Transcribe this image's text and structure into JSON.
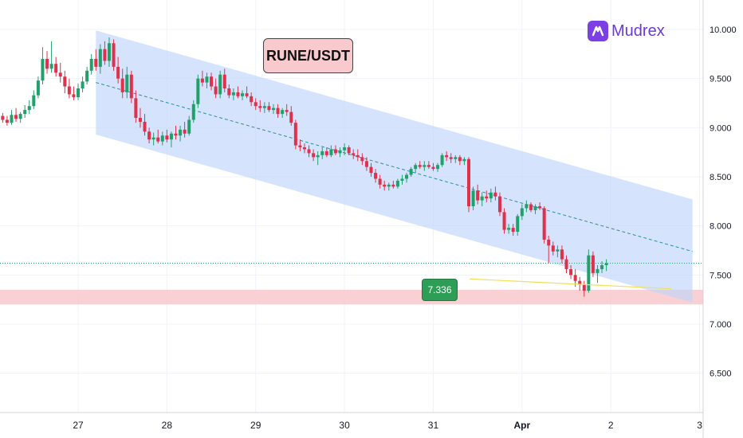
{
  "chart_data": {
    "type": "candlestick",
    "title": "RUNE/USDT",
    "watermark": "Mudrex",
    "y_ticks": [
      "10.000",
      "9.500",
      "9.000",
      "8.500",
      "8.000",
      "7.500",
      "7.000",
      "6.500"
    ],
    "ylim": [
      6.1,
      10.3
    ],
    "x_labels": [
      {
        "label": "27",
        "x": 1,
        "bold": false
      },
      {
        "label": "28",
        "x": 2,
        "bold": false
      },
      {
        "label": "29",
        "x": 3,
        "bold": false
      },
      {
        "label": "30",
        "x": 4,
        "bold": false
      },
      {
        "label": "31",
        "x": 5,
        "bold": false
      },
      {
        "label": "Apr",
        "x": 6,
        "bold": true
      },
      {
        "label": "2",
        "x": 7,
        "bold": false
      },
      {
        "label": "3",
        "x": 8,
        "bold": false
      }
    ],
    "xlim": [
      0.12,
      8.04
    ],
    "channel": {
      "upper": [
        [
          1.2,
          9.99
        ],
        [
          7.92,
          8.27
        ]
      ],
      "lower": [
        [
          1.2,
          8.93
        ],
        [
          7.92,
          7.22
        ]
      ],
      "mid": [
        [
          1.2,
          9.46
        ],
        [
          7.92,
          7.74
        ]
      ],
      "fill_color": "#bcd4fa",
      "mid_color": "#2d8ea3"
    },
    "support_zone": {
      "low": 7.2,
      "high": 7.35,
      "color": "#f8c9cd"
    },
    "current_price_line": 7.62,
    "price_label": {
      "text": "7.336",
      "value": 7.336
    },
    "pointer_line": {
      "from": [
        5.41,
        7.46
      ],
      "to": [
        7.68,
        7.36
      ],
      "color": "#f1e05a"
    },
    "up_color": "#22a06b",
    "down_color": "#e0314b",
    "candles": [
      [
        0.15,
        9.12,
        9.15,
        9.05,
        9.08
      ],
      [
        0.2,
        9.08,
        9.12,
        9.02,
        9.05
      ],
      [
        0.25,
        9.05,
        9.18,
        9.03,
        9.13
      ],
      [
        0.3,
        9.13,
        9.2,
        9.06,
        9.09
      ],
      [
        0.35,
        9.09,
        9.16,
        9.05,
        9.14
      ],
      [
        0.4,
        9.14,
        9.23,
        9.1,
        9.18
      ],
      [
        0.45,
        9.18,
        9.28,
        9.14,
        9.22
      ],
      [
        0.5,
        9.22,
        9.38,
        9.19,
        9.33
      ],
      [
        0.55,
        9.33,
        9.52,
        9.3,
        9.48
      ],
      [
        0.6,
        9.48,
        9.82,
        9.44,
        9.7
      ],
      [
        0.65,
        9.7,
        9.78,
        9.55,
        9.6
      ],
      [
        0.7,
        9.6,
        9.88,
        9.56,
        9.65
      ],
      [
        0.75,
        9.65,
        9.72,
        9.52,
        9.56
      ],
      [
        0.8,
        9.56,
        9.66,
        9.46,
        9.52
      ],
      [
        0.85,
        9.52,
        9.58,
        9.35,
        9.42
      ],
      [
        0.9,
        9.42,
        9.5,
        9.3,
        9.34
      ],
      [
        0.95,
        9.34,
        9.42,
        9.28,
        9.31
      ],
      [
        1.0,
        9.31,
        9.45,
        9.28,
        9.4
      ],
      [
        1.05,
        9.4,
        9.52,
        9.36,
        9.47
      ],
      [
        1.1,
        9.47,
        9.62,
        9.44,
        9.58
      ],
      [
        1.15,
        9.58,
        9.75,
        9.54,
        9.7
      ],
      [
        1.2,
        9.7,
        9.8,
        9.58,
        9.62
      ],
      [
        1.25,
        9.62,
        9.85,
        9.55,
        9.8
      ],
      [
        1.3,
        9.8,
        9.88,
        9.64,
        9.68
      ],
      [
        1.35,
        9.68,
        9.92,
        9.62,
        9.86
      ],
      [
        1.4,
        9.86,
        9.9,
        9.58,
        9.62
      ],
      [
        1.45,
        9.62,
        9.72,
        9.45,
        9.5
      ],
      [
        1.5,
        9.5,
        9.6,
        9.3,
        9.36
      ],
      [
        1.55,
        9.36,
        9.62,
        9.3,
        9.54
      ],
      [
        1.6,
        9.54,
        9.58,
        9.25,
        9.3
      ],
      [
        1.65,
        9.3,
        9.38,
        9.05,
        9.1
      ],
      [
        1.7,
        9.1,
        9.2,
        9.0,
        9.06
      ],
      [
        1.75,
        9.06,
        9.14,
        8.92,
        8.96
      ],
      [
        1.8,
        8.96,
        9.0,
        8.84,
        8.88
      ],
      [
        1.85,
        8.88,
        8.95,
        8.82,
        8.9
      ],
      [
        1.9,
        8.9,
        8.98,
        8.84,
        8.86
      ],
      [
        1.95,
        8.86,
        8.96,
        8.82,
        8.92
      ],
      [
        2.0,
        8.92,
        8.98,
        8.85,
        8.88
      ],
      [
        2.05,
        8.88,
        8.96,
        8.8,
        8.94
      ],
      [
        2.1,
        8.94,
        9.02,
        8.88,
        8.92
      ],
      [
        2.15,
        8.92,
        9.02,
        8.86,
        8.98
      ],
      [
        2.2,
        8.98,
        9.06,
        8.9,
        8.94
      ],
      [
        2.25,
        8.94,
        9.12,
        8.92,
        9.08
      ],
      [
        2.3,
        9.08,
        9.28,
        9.05,
        9.24
      ],
      [
        2.35,
        9.24,
        9.54,
        9.2,
        9.5
      ],
      [
        2.4,
        9.5,
        9.58,
        9.42,
        9.46
      ],
      [
        2.45,
        9.46,
        9.56,
        9.4,
        9.52
      ],
      [
        2.5,
        9.52,
        9.56,
        9.38,
        9.42
      ],
      [
        2.55,
        9.42,
        9.5,
        9.3,
        9.34
      ],
      [
        2.6,
        9.34,
        9.58,
        9.3,
        9.54
      ],
      [
        2.65,
        9.54,
        9.6,
        9.36,
        9.4
      ],
      [
        2.7,
        9.4,
        9.44,
        9.3,
        9.33
      ],
      [
        2.75,
        9.33,
        9.4,
        9.28,
        9.36
      ],
      [
        2.8,
        9.36,
        9.42,
        9.3,
        9.32
      ],
      [
        2.85,
        9.32,
        9.38,
        9.28,
        9.35
      ],
      [
        2.9,
        9.35,
        9.42,
        9.3,
        9.32
      ],
      [
        2.95,
        9.32,
        9.36,
        9.22,
        9.26
      ],
      [
        3.0,
        9.26,
        9.3,
        9.18,
        9.22
      ],
      [
        3.05,
        9.22,
        9.28,
        9.16,
        9.2
      ],
      [
        3.1,
        9.2,
        9.26,
        9.15,
        9.22
      ],
      [
        3.15,
        9.22,
        9.26,
        9.16,
        9.18
      ],
      [
        3.2,
        9.18,
        9.24,
        9.14,
        9.2
      ],
      [
        3.25,
        9.2,
        9.24,
        9.1,
        9.14
      ],
      [
        3.3,
        9.14,
        9.2,
        9.1,
        9.18
      ],
      [
        3.35,
        9.18,
        9.24,
        9.12,
        9.16
      ],
      [
        3.4,
        9.16,
        9.22,
        9.02,
        9.05
      ],
      [
        3.45,
        9.05,
        9.08,
        8.78,
        8.82
      ],
      [
        3.5,
        8.82,
        8.88,
        8.76,
        8.8
      ],
      [
        3.55,
        8.8,
        8.84,
        8.74,
        8.78
      ],
      [
        3.6,
        8.78,
        8.82,
        8.7,
        8.74
      ],
      [
        3.65,
        8.74,
        8.78,
        8.66,
        8.7
      ],
      [
        3.7,
        8.7,
        8.76,
        8.62,
        8.72
      ],
      [
        3.75,
        8.72,
        8.8,
        8.68,
        8.76
      ],
      [
        3.8,
        8.76,
        8.8,
        8.7,
        8.72
      ],
      [
        3.85,
        8.72,
        8.82,
        8.7,
        8.78
      ],
      [
        3.9,
        8.78,
        8.82,
        8.72,
        8.74
      ],
      [
        3.95,
        8.74,
        8.8,
        8.7,
        8.77
      ],
      [
        4.0,
        8.77,
        8.84,
        8.72,
        8.8
      ],
      [
        4.05,
        8.8,
        8.82,
        8.72,
        8.74
      ],
      [
        4.1,
        8.74,
        8.78,
        8.68,
        8.72
      ],
      [
        4.15,
        8.72,
        8.78,
        8.66,
        8.7
      ],
      [
        4.2,
        8.7,
        8.74,
        8.62,
        8.66
      ],
      [
        4.25,
        8.66,
        8.7,
        8.56,
        8.6
      ],
      [
        4.3,
        8.6,
        8.64,
        8.5,
        8.54
      ],
      [
        4.35,
        8.54,
        8.58,
        8.44,
        8.48
      ],
      [
        4.4,
        8.48,
        8.52,
        8.38,
        8.42
      ],
      [
        4.45,
        8.42,
        8.46,
        8.36,
        8.4
      ],
      [
        4.5,
        8.4,
        8.44,
        8.36,
        8.42
      ],
      [
        4.55,
        8.42,
        8.46,
        8.38,
        8.4
      ],
      [
        4.6,
        8.4,
        8.48,
        8.38,
        8.46
      ],
      [
        4.65,
        8.46,
        8.52,
        8.42,
        8.48
      ],
      [
        4.7,
        8.48,
        8.54,
        8.44,
        8.52
      ],
      [
        4.75,
        8.52,
        8.6,
        8.5,
        8.58
      ],
      [
        4.8,
        8.58,
        8.64,
        8.54,
        8.62
      ],
      [
        4.85,
        8.62,
        8.66,
        8.58,
        8.6
      ],
      [
        4.9,
        8.6,
        8.66,
        8.56,
        8.62
      ],
      [
        4.95,
        8.62,
        8.66,
        8.58,
        8.6
      ],
      [
        5.0,
        8.6,
        8.64,
        8.56,
        8.58
      ],
      [
        5.05,
        8.58,
        8.64,
        8.55,
        8.62
      ],
      [
        5.1,
        8.62,
        8.74,
        8.6,
        8.72
      ],
      [
        5.15,
        8.72,
        8.76,
        8.66,
        8.7
      ],
      [
        5.2,
        8.7,
        8.74,
        8.64,
        8.68
      ],
      [
        5.25,
        8.68,
        8.72,
        8.64,
        8.7
      ],
      [
        5.3,
        8.7,
        8.72,
        8.62,
        8.66
      ],
      [
        5.35,
        8.66,
        8.7,
        8.62,
        8.68
      ],
      [
        5.4,
        8.68,
        8.7,
        8.14,
        8.2
      ],
      [
        5.45,
        8.2,
        8.4,
        8.16,
        8.36
      ],
      [
        5.5,
        8.36,
        8.42,
        8.22,
        8.26
      ],
      [
        5.55,
        8.26,
        8.34,
        8.2,
        8.3
      ],
      [
        5.6,
        8.3,
        8.36,
        8.24,
        8.28
      ],
      [
        5.65,
        8.28,
        8.38,
        8.24,
        8.34
      ],
      [
        5.7,
        8.34,
        8.4,
        8.26,
        8.3
      ],
      [
        5.75,
        8.3,
        8.34,
        8.1,
        8.14
      ],
      [
        5.8,
        8.14,
        8.18,
        7.92,
        7.96
      ],
      [
        5.85,
        7.96,
        8.02,
        7.92,
        7.98
      ],
      [
        5.9,
        7.98,
        8.02,
        7.9,
        7.94
      ],
      [
        5.95,
        7.94,
        8.12,
        7.9,
        8.1
      ],
      [
        6.0,
        8.1,
        8.22,
        8.06,
        8.18
      ],
      [
        6.05,
        8.18,
        8.26,
        8.14,
        8.22
      ],
      [
        6.1,
        8.22,
        8.24,
        8.14,
        8.16
      ],
      [
        6.15,
        8.16,
        8.22,
        8.12,
        8.2
      ],
      [
        6.2,
        8.2,
        8.24,
        8.16,
        8.18
      ],
      [
        6.25,
        8.18,
        8.2,
        7.82,
        7.86
      ],
      [
        6.3,
        7.86,
        7.9,
        7.62,
        7.8
      ],
      [
        6.35,
        7.8,
        7.84,
        7.7,
        7.74
      ],
      [
        6.4,
        7.74,
        7.8,
        7.68,
        7.76
      ],
      [
        6.45,
        7.76,
        7.8,
        7.62,
        7.66
      ],
      [
        6.5,
        7.66,
        7.7,
        7.52,
        7.56
      ],
      [
        6.55,
        7.56,
        7.6,
        7.46,
        7.5
      ],
      [
        6.6,
        7.5,
        7.56,
        7.38,
        7.44
      ],
      [
        6.65,
        7.44,
        7.48,
        7.34,
        7.4
      ],
      [
        6.7,
        7.4,
        7.44,
        7.28,
        7.34
      ],
      [
        6.75,
        7.34,
        7.76,
        7.32,
        7.7
      ],
      [
        6.8,
        7.7,
        7.74,
        7.48,
        7.52
      ],
      [
        6.85,
        7.52,
        7.6,
        7.42,
        7.56
      ],
      [
        6.9,
        7.56,
        7.64,
        7.52,
        7.6
      ],
      [
        6.95,
        7.6,
        7.66,
        7.54,
        7.62
      ]
    ]
  }
}
